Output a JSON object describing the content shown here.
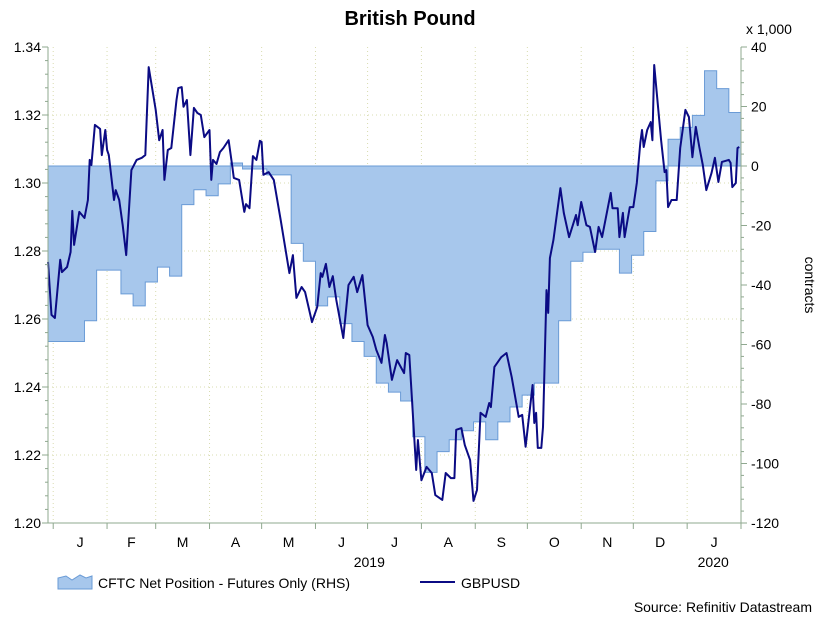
{
  "chart_data": {
    "type": "line",
    "title": "British Pound",
    "right_axis_multiplier": "x 1,000",
    "right_axis_label": "contracts",
    "year_labels": [
      {
        "label": "2019",
        "date": "2019-07-02"
      },
      {
        "label": "2020",
        "date": "2020-01-16"
      }
    ],
    "x_range": [
      "2018-12-29",
      "2020-02-01"
    ],
    "month_labels": [
      {
        "label": "J",
        "month": "2019-01"
      },
      {
        "label": "F",
        "month": "2019-02"
      },
      {
        "label": "M",
        "month": "2019-03"
      },
      {
        "label": "A",
        "month": "2019-04"
      },
      {
        "label": "M",
        "month": "2019-05"
      },
      {
        "label": "J",
        "month": "2019-06"
      },
      {
        "label": "J",
        "month": "2019-07"
      },
      {
        "label": "A",
        "month": "2019-08"
      },
      {
        "label": "S",
        "month": "2019-09"
      },
      {
        "label": "O",
        "month": "2019-10"
      },
      {
        "label": "N",
        "month": "2019-11"
      },
      {
        "label": "D",
        "month": "2019-12"
      },
      {
        "label": "J",
        "month": "2020-01"
      }
    ],
    "left_axis": {
      "range": [
        1.2,
        1.34
      ],
      "ticks": [
        "1.20",
        "1.22",
        "1.24",
        "1.26",
        "1.28",
        "1.30",
        "1.32",
        "1.34"
      ]
    },
    "right_axis": {
      "range": [
        -120,
        40
      ],
      "ticks": [
        "-120",
        "-100",
        "-80",
        "-60",
        "-40",
        "-20",
        "0",
        "20",
        "40"
      ]
    },
    "grid": true,
    "legend_position": "bottom-left",
    "colors": {
      "area_fill": "#a7c7ec",
      "area_edge": "#6a9bd6",
      "line": "#0b0b84",
      "grid": "#d8dcb0",
      "axis": "#8fa88f"
    },
    "series": [
      {
        "name": "CFTC Net Position - Futures Only (RHS)",
        "type": "step-area",
        "axis": "right",
        "dates": [
          "2018-12-29",
          "2019-01-05",
          "2019-01-12",
          "2019-01-19",
          "2019-01-26",
          "2019-02-02",
          "2019-02-09",
          "2019-02-16",
          "2019-02-23",
          "2019-03-02",
          "2019-03-09",
          "2019-03-16",
          "2019-03-23",
          "2019-03-30",
          "2019-04-06",
          "2019-04-13",
          "2019-04-20",
          "2019-04-27",
          "2019-05-04",
          "2019-05-11",
          "2019-05-18",
          "2019-05-25",
          "2019-06-01",
          "2019-06-08",
          "2019-06-15",
          "2019-06-22",
          "2019-06-29",
          "2019-07-06",
          "2019-07-13",
          "2019-07-20",
          "2019-07-27",
          "2019-08-03",
          "2019-08-10",
          "2019-08-17",
          "2019-08-24",
          "2019-08-31",
          "2019-09-07",
          "2019-09-14",
          "2019-09-21",
          "2019-09-28",
          "2019-10-05",
          "2019-10-12",
          "2019-10-19",
          "2019-10-26",
          "2019-11-02",
          "2019-11-09",
          "2019-11-16",
          "2019-11-23",
          "2019-11-30",
          "2019-12-07",
          "2019-12-14",
          "2019-12-21",
          "2019-12-28",
          "2020-01-04",
          "2020-01-11",
          "2020-01-18",
          "2020-01-25"
        ],
        "values": [
          -59,
          -59,
          -59,
          -52,
          -35,
          -35,
          -43,
          -47,
          -39,
          -34,
          -37,
          -13,
          -8,
          -10,
          -6,
          1,
          -1,
          -1,
          -3,
          -3,
          -26,
          -32,
          -47,
          -44,
          -53,
          -59,
          -64,
          -73,
          -76,
          -79,
          -91,
          -103,
          -96,
          -92,
          -89,
          -86,
          -92,
          -86,
          -81,
          -77,
          -73,
          -73,
          -52,
          -32,
          -29,
          -28,
          -28,
          -36,
          -30,
          -22,
          -5,
          9,
          13,
          17,
          32,
          26,
          18
        ]
      },
      {
        "name": "GBPUSD",
        "type": "line",
        "axis": "left",
        "points": [
          [
            "2018-12-29",
            1.2768
          ],
          [
            "2018-12-31",
            1.2612
          ],
          [
            "2019-01-02",
            1.2603
          ],
          [
            "2019-01-05",
            1.2774
          ],
          [
            "2019-01-06",
            1.2738
          ],
          [
            "2019-01-09",
            1.2753
          ],
          [
            "2019-01-11",
            1.2797
          ],
          [
            "2019-01-12",
            1.2918
          ],
          [
            "2019-01-13",
            1.2818
          ],
          [
            "2019-01-16",
            1.2915
          ],
          [
            "2019-01-19",
            1.2897
          ],
          [
            "2019-01-21",
            1.295
          ],
          [
            "2019-01-22",
            1.3068
          ],
          [
            "2019-01-23",
            1.3053
          ],
          [
            "2019-01-25",
            1.3171
          ],
          [
            "2019-01-28",
            1.3159
          ],
          [
            "2019-01-29",
            1.3082
          ],
          [
            "2019-01-31",
            1.3156
          ],
          [
            "2019-02-01",
            1.3097
          ],
          [
            "2019-02-02",
            1.3082
          ],
          [
            "2019-02-05",
            1.295
          ],
          [
            "2019-02-06",
            1.2979
          ],
          [
            "2019-02-08",
            1.295
          ],
          [
            "2019-02-10",
            1.2876
          ],
          [
            "2019-02-12",
            1.2788
          ],
          [
            "2019-02-15",
            1.3038
          ],
          [
            "2019-02-18",
            1.3068
          ],
          [
            "2019-02-21",
            1.3074
          ],
          [
            "2019-02-23",
            1.3082
          ],
          [
            "2019-02-25",
            1.3341
          ],
          [
            "2019-03-01",
            1.3215
          ],
          [
            "2019-03-03",
            1.3126
          ],
          [
            "2019-03-05",
            1.3156
          ],
          [
            "2019-03-06",
            1.3009
          ],
          [
            "2019-03-08",
            1.3097
          ],
          [
            "2019-03-10",
            1.3103
          ],
          [
            "2019-03-13",
            1.3244
          ],
          [
            "2019-03-14",
            1.3279
          ],
          [
            "2019-03-16",
            1.3282
          ],
          [
            "2019-03-17",
            1.3224
          ],
          [
            "2019-03-19",
            1.3244
          ],
          [
            "2019-03-21",
            1.3082
          ],
          [
            "2019-03-23",
            1.3221
          ],
          [
            "2019-03-25",
            1.3206
          ],
          [
            "2019-03-27",
            1.32
          ],
          [
            "2019-03-29",
            1.3135
          ],
          [
            "2019-04-01",
            1.3156
          ],
          [
            "2019-04-02",
            1.3009
          ],
          [
            "2019-04-03",
            1.3068
          ],
          [
            "2019-04-05",
            1.3056
          ],
          [
            "2019-04-07",
            1.3091
          ],
          [
            "2019-04-09",
            1.3103
          ],
          [
            "2019-04-12",
            1.3126
          ],
          [
            "2019-04-14",
            1.3053
          ],
          [
            "2019-04-15",
            1.3015
          ],
          [
            "2019-04-18",
            1.3009
          ],
          [
            "2019-04-21",
            1.2915
          ],
          [
            "2019-04-22",
            1.2938
          ],
          [
            "2019-04-24",
            1.2926
          ],
          [
            "2019-04-26",
            1.3079
          ],
          [
            "2019-04-28",
            1.3068
          ],
          [
            "2019-04-30",
            1.3124
          ],
          [
            "2019-05-01",
            1.3121
          ],
          [
            "2019-05-02",
            1.3024
          ],
          [
            "2019-05-05",
            1.3032
          ],
          [
            "2019-05-08",
            1.3009
          ],
          [
            "2019-05-12",
            1.2891
          ],
          [
            "2019-05-17",
            1.2735
          ],
          [
            "2019-05-19",
            1.2788
          ],
          [
            "2019-05-21",
            1.2662
          ],
          [
            "2019-05-24",
            1.2694
          ],
          [
            "2019-05-26",
            1.2679
          ],
          [
            "2019-05-30",
            1.2591
          ],
          [
            "2019-06-02",
            1.2635
          ],
          [
            "2019-06-04",
            1.2735
          ],
          [
            "2019-06-05",
            1.2724
          ],
          [
            "2019-06-07",
            1.2762
          ],
          [
            "2019-06-09",
            1.2694
          ],
          [
            "2019-06-11",
            1.2726
          ],
          [
            "2019-06-13",
            1.2656
          ],
          [
            "2019-06-17",
            1.2544
          ],
          [
            "2019-06-20",
            1.27
          ],
          [
            "2019-06-23",
            1.2724
          ],
          [
            "2019-06-25",
            1.2679
          ],
          [
            "2019-06-28",
            1.2729
          ],
          [
            "2019-07-01",
            1.2582
          ],
          [
            "2019-07-04",
            1.2547
          ],
          [
            "2019-07-06",
            1.2509
          ],
          [
            "2019-07-09",
            1.2471
          ],
          [
            "2019-07-11",
            1.2553
          ],
          [
            "2019-07-12",
            1.2529
          ],
          [
            "2019-07-15",
            1.2421
          ],
          [
            "2019-07-18",
            1.2479
          ],
          [
            "2019-07-22",
            1.2441
          ],
          [
            "2019-07-23",
            1.25
          ],
          [
            "2019-07-25",
            1.2494
          ],
          [
            "2019-07-29",
            1.2156
          ],
          [
            "2019-07-30",
            1.2244
          ],
          [
            "2019-08-01",
            1.2126
          ],
          [
            "2019-08-04",
            1.2165
          ],
          [
            "2019-08-07",
            1.2147
          ],
          [
            "2019-08-09",
            1.2082
          ],
          [
            "2019-08-13",
            1.2068
          ],
          [
            "2019-08-15",
            1.2147
          ],
          [
            "2019-08-18",
            1.2132
          ],
          [
            "2019-08-20",
            1.2132
          ],
          [
            "2019-08-21",
            1.2274
          ],
          [
            "2019-08-24",
            1.2279
          ],
          [
            "2019-08-26",
            1.2229
          ],
          [
            "2019-08-29",
            1.2185
          ],
          [
            "2019-08-31",
            1.2065
          ],
          [
            "2019-09-02",
            1.2097
          ],
          [
            "2019-09-04",
            1.2324
          ],
          [
            "2019-09-07",
            1.2312
          ],
          [
            "2019-09-09",
            1.2353
          ],
          [
            "2019-09-10",
            1.2341
          ],
          [
            "2019-09-12",
            1.2459
          ],
          [
            "2019-09-16",
            1.2488
          ],
          [
            "2019-09-19",
            1.25
          ],
          [
            "2019-09-22",
            1.2429
          ],
          [
            "2019-09-26",
            1.2312
          ],
          [
            "2019-09-28",
            1.2318
          ],
          [
            "2019-09-30",
            1.2224
          ],
          [
            "2019-10-04",
            1.2406
          ],
          [
            "2019-10-05",
            1.2294
          ],
          [
            "2019-10-06",
            1.2324
          ],
          [
            "2019-10-07",
            1.2221
          ],
          [
            "2019-10-09",
            1.2221
          ],
          [
            "2019-10-10",
            1.2282
          ],
          [
            "2019-10-12",
            1.2685
          ],
          [
            "2019-10-13",
            1.2618
          ],
          [
            "2019-10-14",
            1.2779
          ],
          [
            "2019-10-16",
            1.2832
          ],
          [
            "2019-10-20",
            1.2985
          ],
          [
            "2019-10-22",
            1.2912
          ],
          [
            "2019-10-25",
            1.2841
          ],
          [
            "2019-10-29",
            1.2906
          ],
          [
            "2019-10-30",
            1.2876
          ],
          [
            "2019-11-01",
            1.2944
          ],
          [
            "2019-11-04",
            1.2876
          ],
          [
            "2019-11-06",
            1.2871
          ],
          [
            "2019-11-09",
            1.2797
          ],
          [
            "2019-11-11",
            1.2871
          ],
          [
            "2019-11-13",
            1.2841
          ],
          [
            "2019-11-18",
            1.2971
          ],
          [
            "2019-11-19",
            1.2926
          ],
          [
            "2019-11-22",
            1.2926
          ],
          [
            "2019-11-23",
            1.2841
          ],
          [
            "2019-11-25",
            1.2912
          ],
          [
            "2019-11-26",
            1.2841
          ],
          [
            "2019-11-29",
            1.2929
          ],
          [
            "2019-12-01",
            1.2929
          ],
          [
            "2019-12-03",
            1.3
          ],
          [
            "2019-12-05",
            1.3118
          ],
          [
            "2019-12-06",
            1.3156
          ],
          [
            "2019-12-07",
            1.3106
          ],
          [
            "2019-12-09",
            1.3156
          ],
          [
            "2019-12-11",
            1.3179
          ],
          [
            "2019-12-12",
            1.3126
          ],
          [
            "2019-12-13",
            1.3347
          ],
          [
            "2019-12-17",
            1.3126
          ],
          [
            "2019-12-19",
            1.3032
          ],
          [
            "2019-12-20",
            1.3038
          ],
          [
            "2019-12-21",
            1.2929
          ],
          [
            "2019-12-23",
            1.295
          ],
          [
            "2019-12-26",
            1.295
          ],
          [
            "2019-12-28",
            1.3103
          ],
          [
            "2019-12-31",
            1.3215
          ],
          [
            "2020-01-02",
            1.3194
          ],
          [
            "2020-01-04",
            1.3076
          ],
          [
            "2020-01-06",
            1.3165
          ],
          [
            "2020-01-08",
            1.3106
          ],
          [
            "2020-01-10",
            1.3053
          ],
          [
            "2020-01-12",
            1.2979
          ],
          [
            "2020-01-15",
            1.3029
          ],
          [
            "2020-01-17",
            1.3074
          ],
          [
            "2020-01-19",
            1.3003
          ],
          [
            "2020-01-21",
            1.3062
          ],
          [
            "2020-01-25",
            1.3068
          ],
          [
            "2020-01-26",
            1.3059
          ],
          [
            "2020-01-27",
            1.2988
          ],
          [
            "2020-01-29",
            1.3
          ],
          [
            "2020-01-30",
            1.3103
          ],
          [
            "2020-01-31",
            1.3106
          ]
        ]
      }
    ],
    "source": "Source: Refinitiv Datastream"
  }
}
